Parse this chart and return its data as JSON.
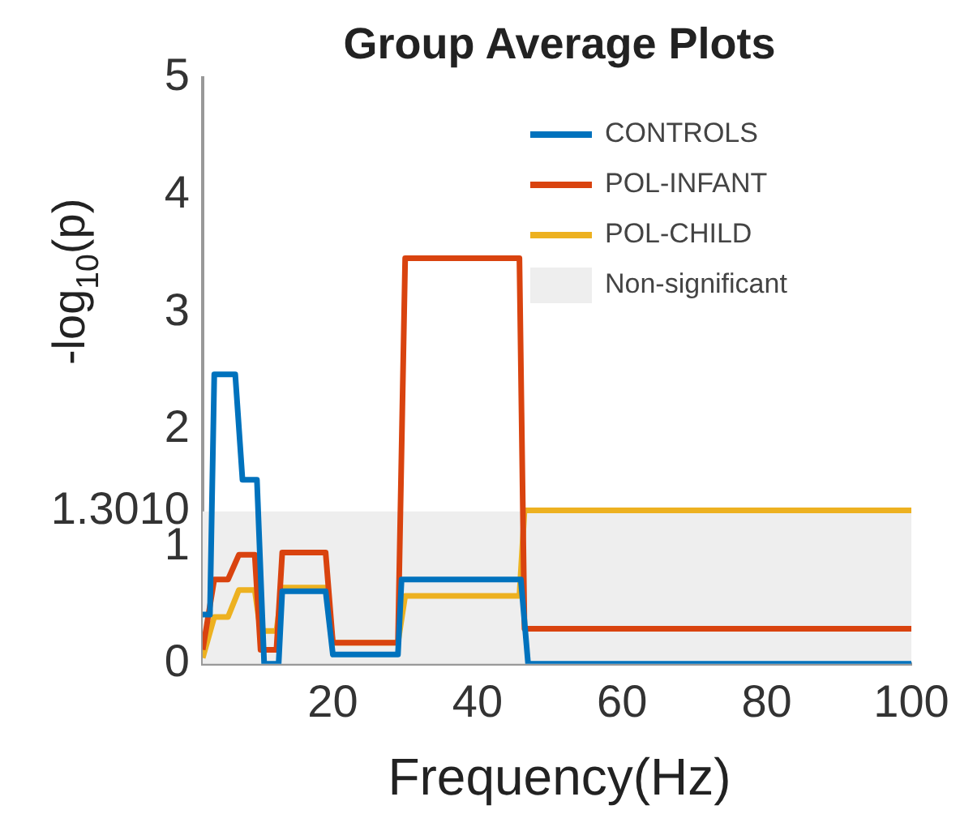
{
  "chart_data": {
    "type": "line",
    "title": "Group Average Plots",
    "xlabel": "Frequency(Hz)",
    "ylabel": "-log$_{10}$(p)",
    "xlim": [
      2,
      100
    ],
    "xticks": [
      20,
      40,
      60,
      80,
      100
    ],
    "ylim": [
      0,
      5
    ],
    "yticks": [
      0,
      1,
      {
        "value": 1.301,
        "label": "1.3010"
      },
      2,
      3,
      4,
      5
    ],
    "grid": false,
    "legend": "top right",
    "marker": "none",
    "line_style": "solid",
    "bands": [
      {
        "axis": "y",
        "from": 0,
        "to": 1.301,
        "label": "Non-significant",
        "color": "#eeeeee"
      }
    ],
    "series": [
      {
        "name": "CONTROLS",
        "color": "#0072bd",
        "x": [
          2,
          3,
          3.6,
          6.5,
          7.5,
          9.5,
          10.5,
          12.5,
          13,
          19,
          20,
          29,
          29.5,
          46,
          47,
          100
        ],
        "values": [
          0.42,
          0.42,
          2.47,
          2.47,
          1.57,
          1.57,
          0,
          0,
          0.62,
          0.62,
          0.08,
          0.08,
          0.72,
          0.72,
          0,
          0
        ]
      },
      {
        "name": "POL-INFANT",
        "color": "#d9430f",
        "x": [
          2,
          3.6,
          5.5,
          7,
          9.2,
          10,
          12.2,
          13,
          19,
          20,
          29,
          30,
          45.8,
          46.5,
          100
        ],
        "values": [
          0.12,
          0.72,
          0.72,
          0.93,
          0.93,
          0.12,
          0.12,
          0.95,
          0.95,
          0.18,
          0.18,
          3.46,
          3.46,
          0.3,
          0.3
        ]
      },
      {
        "name": "POL-CHILD",
        "color": "#edb120",
        "x": [
          2,
          3.6,
          5.5,
          7,
          9.2,
          10,
          12.2,
          13,
          19,
          20,
          29,
          30,
          45.8,
          46.5,
          100
        ],
        "values": [
          0.05,
          0.4,
          0.4,
          0.63,
          0.63,
          0.28,
          0.28,
          0.65,
          0.65,
          0.18,
          0.18,
          0.58,
          0.58,
          1.31,
          1.31
        ]
      }
    ]
  }
}
